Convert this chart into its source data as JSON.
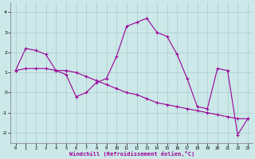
{
  "xlabel": "Windchill (Refroidissement éolien,°C)",
  "background_color": "#cce8e8",
  "grid_color": "#aacccc",
  "line_color": "#990099",
  "x": [
    0,
    1,
    2,
    3,
    4,
    5,
    6,
    7,
    8,
    9,
    10,
    11,
    12,
    13,
    14,
    15,
    16,
    17,
    18,
    19,
    20,
    21,
    22,
    23
  ],
  "y_line1": [
    1.1,
    2.2,
    2.1,
    1.9,
    1.1,
    0.9,
    -0.2,
    0.0,
    0.5,
    0.7,
    1.8,
    3.3,
    3.5,
    3.7,
    3.0,
    2.8,
    1.9,
    0.7,
    -0.7,
    -0.8,
    1.2,
    1.1,
    -2.1,
    -1.3
  ],
  "y_line2": [
    1.1,
    1.2,
    1.2,
    1.2,
    1.1,
    1.1,
    1.0,
    0.8,
    0.6,
    0.4,
    0.2,
    0.0,
    -0.1,
    -0.3,
    -0.5,
    -0.6,
    -0.7,
    -0.8,
    -0.9,
    -1.0,
    -1.1,
    -1.2,
    -1.3,
    -1.3
  ],
  "ylim": [
    -2.5,
    4.5
  ],
  "xlim": [
    -0.5,
    23.5
  ],
  "yticks": [
    -2,
    -1,
    0,
    1,
    2,
    3,
    4
  ],
  "xticks": [
    0,
    1,
    2,
    3,
    4,
    5,
    6,
    7,
    8,
    9,
    10,
    11,
    12,
    13,
    14,
    15,
    16,
    17,
    18,
    19,
    20,
    21,
    22,
    23
  ],
  "marker": "+",
  "markersize": 3,
  "linewidth": 0.8
}
